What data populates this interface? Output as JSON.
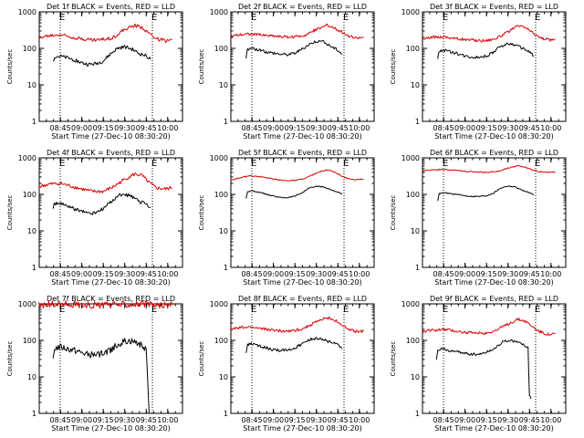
{
  "figure": {
    "background": "#ffffff"
  },
  "colors": {
    "events": "#000000",
    "lld": "#dd0000",
    "axis": "#000000"
  },
  "chart_data": [
    {
      "type": "line",
      "title": "Det 1f BLACK = Events, RED = LLD",
      "xlabel": "Start Time (27-Dec-10 08:30:20)",
      "ylabel": "Counts/sec",
      "yscale": "log",
      "ylim": [
        1,
        1000
      ],
      "x_ticks": [
        "08:45",
        "09:00",
        "09:15",
        "09:30",
        "09:45",
        "10:00"
      ],
      "y_ticks": [
        "1",
        "10",
        "100",
        "1000"
      ],
      "markers": [
        "E",
        "E"
      ],
      "noise": 0.05,
      "series": [
        {
          "name": "LLD",
          "color": "#dd0000",
          "x": [
            "08:30",
            "08:37",
            "08:45",
            "08:52",
            "09:00",
            "09:07",
            "09:15",
            "09:22",
            "09:30",
            "09:37",
            "09:42",
            "09:47",
            "09:52",
            "09:58",
            "10:03"
          ],
          "y": [
            200,
            220,
            240,
            210,
            185,
            170,
            175,
            200,
            330,
            420,
            380,
            260,
            185,
            160,
            170
          ]
        },
        {
          "name": "Events",
          "color": "#000000",
          "x": [
            "08:40",
            "08:41",
            "08:45",
            "08:50",
            "08:55",
            "09:00",
            "09:05",
            "09:10",
            "09:15",
            "09:20",
            "09:25",
            "09:30",
            "09:35",
            "09:40",
            "09:45",
            "09:48"
          ],
          "y": [
            45,
            60,
            60,
            55,
            48,
            40,
            36,
            38,
            45,
            70,
            100,
            110,
            95,
            72,
            62,
            50
          ]
        }
      ]
    },
    {
      "type": "line",
      "title": "Det 2f BLACK = Events, RED = LLD",
      "xlabel": "Start Time (27-Dec-10 08:30:20)",
      "ylabel": "Counts/sec",
      "yscale": "log",
      "ylim": [
        1,
        1000
      ],
      "x_ticks": [
        "08:45",
        "09:00",
        "09:15",
        "09:30",
        "09:45",
        "10:00"
      ],
      "y_ticks": [
        "1",
        "10",
        "100",
        "1000"
      ],
      "markers": [
        "E",
        "E"
      ],
      "noise": 0.04,
      "series": [
        {
          "name": "LLD",
          "color": "#dd0000",
          "x": [
            "08:30",
            "08:37",
            "08:45",
            "08:52",
            "09:00",
            "09:07",
            "09:15",
            "09:22",
            "09:30",
            "09:37",
            "09:42",
            "09:47",
            "09:52",
            "09:58",
            "10:03"
          ],
          "y": [
            220,
            240,
            250,
            230,
            220,
            205,
            205,
            230,
            330,
            430,
            380,
            290,
            220,
            190,
            200
          ]
        },
        {
          "name": "Events",
          "color": "#000000",
          "x": [
            "08:41",
            "08:42",
            "08:45",
            "08:50",
            "08:55",
            "09:00",
            "09:05",
            "09:10",
            "09:15",
            "09:20",
            "09:25",
            "09:30",
            "09:35",
            "09:40",
            "09:45",
            "09:48"
          ],
          "y": [
            55,
            95,
            100,
            90,
            80,
            75,
            70,
            68,
            75,
            95,
            130,
            160,
            150,
            115,
            90,
            70
          ]
        }
      ]
    },
    {
      "type": "line",
      "title": "Det 3f BLACK = Events, RED = LLD",
      "xlabel": "Start Time (27-Dec-10 08:30:20)",
      "ylabel": "Counts/sec",
      "yscale": "log",
      "ylim": [
        1,
        1000
      ],
      "x_ticks": [
        "08:45",
        "09:00",
        "09:15",
        "09:30",
        "09:45",
        "10:00"
      ],
      "y_ticks": [
        "1",
        "10",
        "100",
        "1000"
      ],
      "markers": [
        "E",
        "E"
      ],
      "noise": 0.04,
      "series": [
        {
          "name": "LLD",
          "color": "#dd0000",
          "x": [
            "08:30",
            "08:37",
            "08:45",
            "08:52",
            "09:00",
            "09:07",
            "09:15",
            "09:22",
            "09:30",
            "09:37",
            "09:42",
            "09:47",
            "09:52",
            "09:58",
            "10:03"
          ],
          "y": [
            170,
            200,
            210,
            190,
            175,
            165,
            165,
            190,
            280,
            410,
            380,
            270,
            200,
            170,
            180
          ]
        },
        {
          "name": "Events",
          "color": "#000000",
          "x": [
            "08:41",
            "08:42",
            "08:45",
            "08:50",
            "08:55",
            "09:00",
            "09:05",
            "09:10",
            "09:15",
            "09:20",
            "09:25",
            "09:30",
            "09:35",
            "09:40",
            "09:45",
            "09:48"
          ],
          "y": [
            55,
            85,
            90,
            80,
            72,
            62,
            58,
            58,
            62,
            80,
            115,
            135,
            125,
            100,
            80,
            62
          ]
        }
      ]
    },
    {
      "type": "line",
      "title": "Det 4f BLACK = Events, RED = LLD",
      "xlabel": "Start Time (27-Dec-10 08:30:20)",
      "ylabel": "Counts/sec",
      "yscale": "log",
      "ylim": [
        1,
        1000
      ],
      "x_ticks": [
        "08:45",
        "09:00",
        "09:15",
        "09:30",
        "09:45",
        "10:00"
      ],
      "y_ticks": [
        "1",
        "10",
        "100",
        "1000"
      ],
      "markers": [
        "E",
        "E"
      ],
      "noise": 0.05,
      "series": [
        {
          "name": "LLD",
          "color": "#dd0000",
          "x": [
            "08:30",
            "08:37",
            "08:45",
            "08:52",
            "09:00",
            "09:07",
            "09:15",
            "09:22",
            "09:30",
            "09:37",
            "09:42",
            "09:47",
            "09:52",
            "09:58",
            "10:03"
          ],
          "y": [
            160,
            190,
            200,
            170,
            140,
            120,
            120,
            160,
            260,
            360,
            330,
            210,
            150,
            140,
            150
          ]
        },
        {
          "name": "Events",
          "color": "#000000",
          "x": [
            "08:40",
            "08:41",
            "08:45",
            "08:50",
            "08:55",
            "09:00",
            "09:05",
            "09:10",
            "09:15",
            "09:20",
            "09:25",
            "09:30",
            "09:35",
            "09:40",
            "09:45",
            "09:48"
          ],
          "y": [
            45,
            55,
            55,
            48,
            40,
            35,
            30,
            32,
            40,
            60,
            90,
            100,
            85,
            65,
            55,
            45
          ]
        }
      ]
    },
    {
      "type": "line",
      "title": "Det 5f BLACK = Events, RED = LLD",
      "xlabel": "Start Time (27-Dec-10 08:30:20)",
      "ylabel": "Counts/sec",
      "yscale": "log",
      "ylim": [
        1,
        1000
      ],
      "x_ticks": [
        "08:45",
        "09:00",
        "09:15",
        "09:30",
        "09:45",
        "10:00"
      ],
      "y_ticks": [
        "1",
        "10",
        "100",
        "1000"
      ],
      "markers": [
        "E",
        "E"
      ],
      "noise": 0.015,
      "series": [
        {
          "name": "LLD",
          "color": "#dd0000",
          "x": [
            "08:30",
            "08:37",
            "08:45",
            "08:52",
            "09:00",
            "09:07",
            "09:15",
            "09:22",
            "09:30",
            "09:37",
            "09:42",
            "09:47",
            "09:52",
            "09:58",
            "10:03"
          ],
          "y": [
            240,
            290,
            320,
            300,
            260,
            240,
            240,
            270,
            380,
            470,
            420,
            330,
            270,
            250,
            260
          ]
        },
        {
          "name": "Events",
          "color": "#000000",
          "x": [
            "08:41",
            "08:42",
            "08:45",
            "08:50",
            "08:55",
            "09:00",
            "09:05",
            "09:10",
            "09:15",
            "09:20",
            "09:25",
            "09:30",
            "09:35",
            "09:40",
            "09:45",
            "09:48"
          ],
          "y": [
            75,
            120,
            125,
            115,
            100,
            90,
            82,
            82,
            90,
            110,
            150,
            165,
            160,
            135,
            115,
            100
          ]
        }
      ]
    },
    {
      "type": "line",
      "title": "Det 6f BLACK = Events, RED = LLD",
      "xlabel": "Start Time (27-Dec-10 08:30:20)",
      "ylabel": "Counts/sec",
      "yscale": "log",
      "ylim": [
        1,
        1000
      ],
      "x_ticks": [
        "08:45",
        "09:00",
        "09:15",
        "09:30",
        "09:45",
        "10:00"
      ],
      "y_ticks": [
        "1",
        "10",
        "100",
        "1000"
      ],
      "markers": [
        "E",
        "E"
      ],
      "noise": 0.015,
      "series": [
        {
          "name": "LLD",
          "color": "#dd0000",
          "x": [
            "08:30",
            "08:37",
            "08:45",
            "08:52",
            "09:00",
            "09:07",
            "09:15",
            "09:22",
            "09:30",
            "09:37",
            "09:42",
            "09:47",
            "09:52",
            "09:58",
            "10:03"
          ],
          "y": [
            440,
            470,
            480,
            460,
            430,
            410,
            400,
            420,
            520,
            610,
            560,
            470,
            420,
            400,
            410
          ]
        },
        {
          "name": "Events",
          "color": "#000000",
          "x": [
            "08:41",
            "08:42",
            "08:45",
            "08:50",
            "08:55",
            "09:00",
            "09:05",
            "09:10",
            "09:15",
            "09:20",
            "09:25",
            "09:30",
            "09:35",
            "09:40",
            "09:45",
            "09:48"
          ],
          "y": [
            65,
            105,
            110,
            105,
            98,
            92,
            88,
            88,
            92,
            110,
            150,
            170,
            160,
            130,
            110,
            95
          ]
        }
      ]
    },
    {
      "type": "line",
      "title": "Det 7f BLACK = Events, RED = LLD",
      "xlabel": "Start Time (27-Dec-10 08:30:20)",
      "ylabel": "Counts/sec",
      "yscale": "log",
      "ylim": [
        1,
        1000
      ],
      "x_ticks": [
        "08:45",
        "09:00",
        "09:15",
        "09:30",
        "09:45",
        "10:00"
      ],
      "y_ticks": [
        "1",
        "10",
        "100",
        "1000"
      ],
      "markers": [
        "E",
        "E"
      ],
      "noise": 0.09,
      "series": [
        {
          "name": "LLD",
          "color": "#dd0000",
          "x": [
            "08:30",
            "08:37",
            "08:45",
            "08:52",
            "09:00",
            "09:07",
            "09:15",
            "09:22",
            "09:30",
            "09:37",
            "09:42",
            "09:47",
            "09:52",
            "09:58",
            "10:03"
          ],
          "y": [
            900,
            950,
            1000,
            980,
            950,
            920,
            920,
            940,
            980,
            1000,
            980,
            950,
            930,
            920,
            930
          ]
        },
        {
          "name": "Events",
          "color": "#000000",
          "x": [
            "08:40",
            "08:41",
            "08:45",
            "08:50",
            "08:55",
            "09:00",
            "09:05",
            "09:10",
            "09:15",
            "09:20",
            "09:25",
            "09:30",
            "09:35",
            "09:40",
            "09:45",
            "09:47",
            "09:48"
          ],
          "y": [
            30,
            60,
            65,
            58,
            52,
            45,
            40,
            40,
            45,
            55,
            75,
            95,
            95,
            80,
            60,
            1.2,
            1
          ]
        }
      ]
    },
    {
      "type": "line",
      "title": "Det 8f BLACK = Events, RED = LLD",
      "xlabel": "Start Time (27-Dec-10 08:30:20)",
      "ylabel": "Counts/sec",
      "yscale": "log",
      "ylim": [
        1,
        1000
      ],
      "x_ticks": [
        "08:45",
        "09:00",
        "09:15",
        "09:30",
        "09:45",
        "10:00"
      ],
      "y_ticks": [
        "1",
        "10",
        "100",
        "1000"
      ],
      "markers": [
        "E",
        "E"
      ],
      "noise": 0.04,
      "series": [
        {
          "name": "LLD",
          "color": "#dd0000",
          "x": [
            "08:30",
            "08:37",
            "08:45",
            "08:52",
            "09:00",
            "09:07",
            "09:15",
            "09:22",
            "09:30",
            "09:37",
            "09:42",
            "09:47",
            "09:52",
            "09:58",
            "10:03"
          ],
          "y": [
            200,
            220,
            230,
            210,
            190,
            180,
            185,
            220,
            320,
            420,
            380,
            280,
            200,
            170,
            180
          ]
        },
        {
          "name": "Events",
          "color": "#000000",
          "x": [
            "08:41",
            "08:42",
            "08:45",
            "08:50",
            "08:55",
            "09:00",
            "09:05",
            "09:10",
            "09:15",
            "09:20",
            "09:25",
            "09:30",
            "09:35",
            "09:40",
            "09:45",
            "09:48"
          ],
          "y": [
            45,
            75,
            80,
            70,
            62,
            55,
            52,
            55,
            62,
            80,
            105,
            115,
            105,
            88,
            75,
            60
          ]
        }
      ]
    },
    {
      "type": "line",
      "title": "Det 9f BLACK = Events, RED = LLD",
      "xlabel": "Start Time (27-Dec-10 08:30:20)",
      "ylabel": "Counts/sec",
      "yscale": "log",
      "ylim": [
        1,
        1000
      ],
      "x_ticks": [
        "08:45",
        "09:00",
        "09:15",
        "09:30",
        "09:45",
        "10:00"
      ],
      "y_ticks": [
        "1",
        "10",
        "100",
        "1000"
      ],
      "markers": [
        "E",
        "E"
      ],
      "noise": 0.04,
      "series": [
        {
          "name": "LLD",
          "color": "#dd0000",
          "x": [
            "08:30",
            "08:37",
            "08:45",
            "08:52",
            "09:00",
            "09:07",
            "09:15",
            "09:22",
            "09:30",
            "09:37",
            "09:42",
            "09:47",
            "09:52",
            "09:58",
            "10:03"
          ],
          "y": [
            170,
            190,
            200,
            185,
            165,
            155,
            160,
            190,
            280,
            380,
            340,
            240,
            175,
            145,
            150
          ]
        },
        {
          "name": "Events",
          "color": "#000000",
          "x": [
            "08:40",
            "08:41",
            "08:45",
            "08:50",
            "08:55",
            "09:00",
            "09:05",
            "09:10",
            "09:15",
            "09:20",
            "09:25",
            "09:30",
            "09:35",
            "09:40",
            "09:44",
            "09:45",
            "09:46"
          ],
          "y": [
            30,
            55,
            58,
            52,
            48,
            45,
            42,
            42,
            48,
            58,
            85,
            100,
            95,
            80,
            65,
            3,
            2.5
          ]
        }
      ]
    }
  ]
}
